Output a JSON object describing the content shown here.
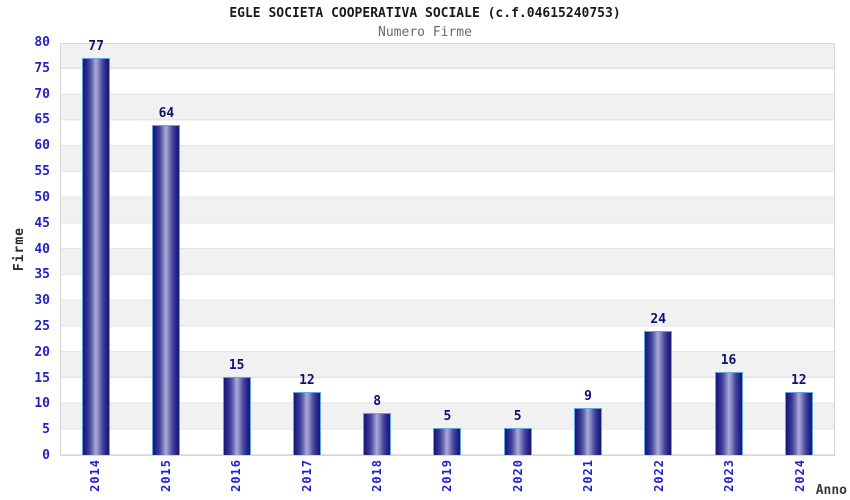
{
  "title": "EGLE SOCIETA COOPERATIVA SOCIALE (c.f.04615240753)",
  "subtitle": "Numero Firme",
  "chart_data": {
    "type": "bar",
    "categories": [
      "2014",
      "2015",
      "2016",
      "2017",
      "2018",
      "2019",
      "2020",
      "2021",
      "2022",
      "2023",
      "2024"
    ],
    "values": [
      77,
      64,
      15,
      12,
      8,
      5,
      5,
      9,
      24,
      16,
      12
    ],
    "title": "EGLE SOCIETA COOPERATIVA SOCIALE (c.f.04615240753)",
    "subtitle": "Numero Firme",
    "xlabel": "Anno",
    "ylabel": "Firme",
    "ylim": [
      0,
      80
    ],
    "ytick_step": 5,
    "grid": "horizontal-bands-alternating",
    "legend": "none",
    "colors": {
      "bar_fill_dark": "#23238a",
      "bar_fill_highlight": "#a8a8da",
      "bar_border": "#61a7dd",
      "value_label": "#10106e",
      "axis_tick_label": "#2222cc",
      "band_gray": "#f1f1f1",
      "band_white": "#ffffff",
      "plot_border": "#d6d6d6",
      "title_color": "#1a1a1a",
      "subtitle_color": "#6b6b6b"
    }
  }
}
